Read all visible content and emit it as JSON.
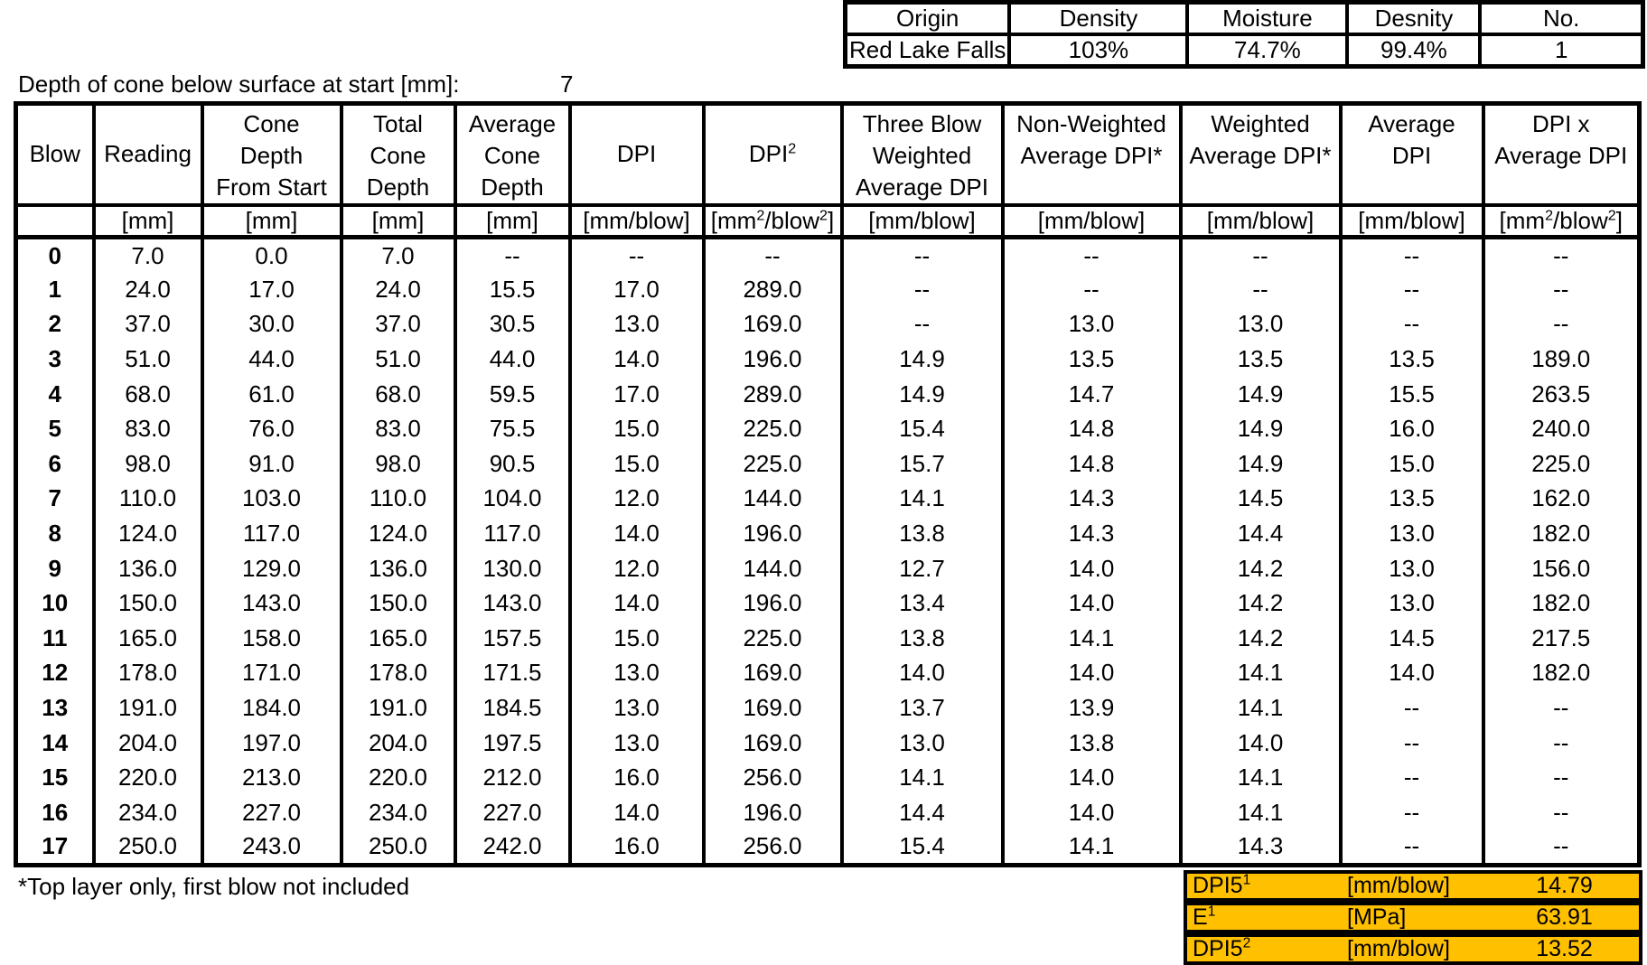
{
  "info_table": {
    "headers": [
      "Origin",
      "Density",
      "Moisture",
      "Desnity",
      "No."
    ],
    "values": [
      "Red Lake Falls",
      "103%",
      "74.7%",
      "99.4%",
      "1"
    ]
  },
  "depth_line": {
    "label": "Depth of cone below surface at start [mm]:",
    "value": "7"
  },
  "main_table": {
    "headers": [
      [
        "Blow"
      ],
      [
        "Reading"
      ],
      [
        "Cone",
        "Depth",
        "From Start"
      ],
      [
        "Total",
        "Cone",
        "Depth"
      ],
      [
        "Average",
        "Cone",
        "Depth"
      ],
      [
        "DPI"
      ],
      [
        "DPI^2"
      ],
      [
        "Three Blow",
        "Weighted",
        "Average DPI"
      ],
      [
        "Non-Weighted",
        "Average DPI*"
      ],
      [
        "Weighted",
        "Average DPI*"
      ],
      [
        "Average",
        "DPI"
      ],
      [
        "DPI x",
        "Average DPI"
      ]
    ],
    "units": [
      "",
      "[mm]",
      "[mm]",
      "[mm]",
      "[mm]",
      "[mm/blow]",
      "[mm^2/blow^2]",
      "[mm/blow]",
      "[mm/blow]",
      "[mm/blow]",
      "[mm/blow]",
      "[mm^2/blow^2]"
    ],
    "rows": [
      [
        "0",
        "7.0",
        "0.0",
        "7.0",
        "--",
        "--",
        "--",
        "--",
        "--",
        "--",
        "--",
        "--"
      ],
      [
        "1",
        "24.0",
        "17.0",
        "24.0",
        "15.5",
        "17.0",
        "289.0",
        "--",
        "--",
        "--",
        "--",
        "--"
      ],
      [
        "2",
        "37.0",
        "30.0",
        "37.0",
        "30.5",
        "13.0",
        "169.0",
        "--",
        "13.0",
        "13.0",
        "--",
        "--"
      ],
      [
        "3",
        "51.0",
        "44.0",
        "51.0",
        "44.0",
        "14.0",
        "196.0",
        "14.9",
        "13.5",
        "13.5",
        "13.5",
        "189.0"
      ],
      [
        "4",
        "68.0",
        "61.0",
        "68.0",
        "59.5",
        "17.0",
        "289.0",
        "14.9",
        "14.7",
        "14.9",
        "15.5",
        "263.5"
      ],
      [
        "5",
        "83.0",
        "76.0",
        "83.0",
        "75.5",
        "15.0",
        "225.0",
        "15.4",
        "14.8",
        "14.9",
        "16.0",
        "240.0"
      ],
      [
        "6",
        "98.0",
        "91.0",
        "98.0",
        "90.5",
        "15.0",
        "225.0",
        "15.7",
        "14.8",
        "14.9",
        "15.0",
        "225.0"
      ],
      [
        "7",
        "110.0",
        "103.0",
        "110.0",
        "104.0",
        "12.0",
        "144.0",
        "14.1",
        "14.3",
        "14.5",
        "13.5",
        "162.0"
      ],
      [
        "8",
        "124.0",
        "117.0",
        "124.0",
        "117.0",
        "14.0",
        "196.0",
        "13.8",
        "14.3",
        "14.4",
        "13.0",
        "182.0"
      ],
      [
        "9",
        "136.0",
        "129.0",
        "136.0",
        "130.0",
        "12.0",
        "144.0",
        "12.7",
        "14.0",
        "14.2",
        "13.0",
        "156.0"
      ],
      [
        "10",
        "150.0",
        "143.0",
        "150.0",
        "143.0",
        "14.0",
        "196.0",
        "13.4",
        "14.0",
        "14.2",
        "13.0",
        "182.0"
      ],
      [
        "11",
        "165.0",
        "158.0",
        "165.0",
        "157.5",
        "15.0",
        "225.0",
        "13.8",
        "14.1",
        "14.2",
        "14.5",
        "217.5"
      ],
      [
        "12",
        "178.0",
        "171.0",
        "178.0",
        "171.5",
        "13.0",
        "169.0",
        "14.0",
        "14.0",
        "14.1",
        "14.0",
        "182.0"
      ],
      [
        "13",
        "191.0",
        "184.0",
        "191.0",
        "184.5",
        "13.0",
        "169.0",
        "13.7",
        "13.9",
        "14.1",
        "--",
        "--"
      ],
      [
        "14",
        "204.0",
        "197.0",
        "204.0",
        "197.5",
        "13.0",
        "169.0",
        "13.0",
        "13.8",
        "14.0",
        "--",
        "--"
      ],
      [
        "15",
        "220.0",
        "213.0",
        "220.0",
        "212.0",
        "16.0",
        "256.0",
        "14.1",
        "14.0",
        "14.1",
        "--",
        "--"
      ],
      [
        "16",
        "234.0",
        "227.0",
        "234.0",
        "227.0",
        "14.0",
        "196.0",
        "14.4",
        "14.0",
        "14.1",
        "--",
        "--"
      ],
      [
        "17",
        "250.0",
        "243.0",
        "250.0",
        "242.0",
        "16.0",
        "256.0",
        "15.4",
        "14.1",
        "14.3",
        "--",
        "--"
      ]
    ]
  },
  "footnote": "*Top layer only, first blow not included",
  "summary": {
    "highlight_color": "#FFC000",
    "rows": [
      {
        "label": "DPI5^1",
        "unit": "[mm/blow]",
        "value": "14.79"
      },
      {
        "label": "E^1",
        "unit": "[MPa]",
        "value": "63.91"
      },
      {
        "label": "DPI5^2",
        "unit": "[mm/blow]",
        "value": "13.52"
      }
    ]
  }
}
